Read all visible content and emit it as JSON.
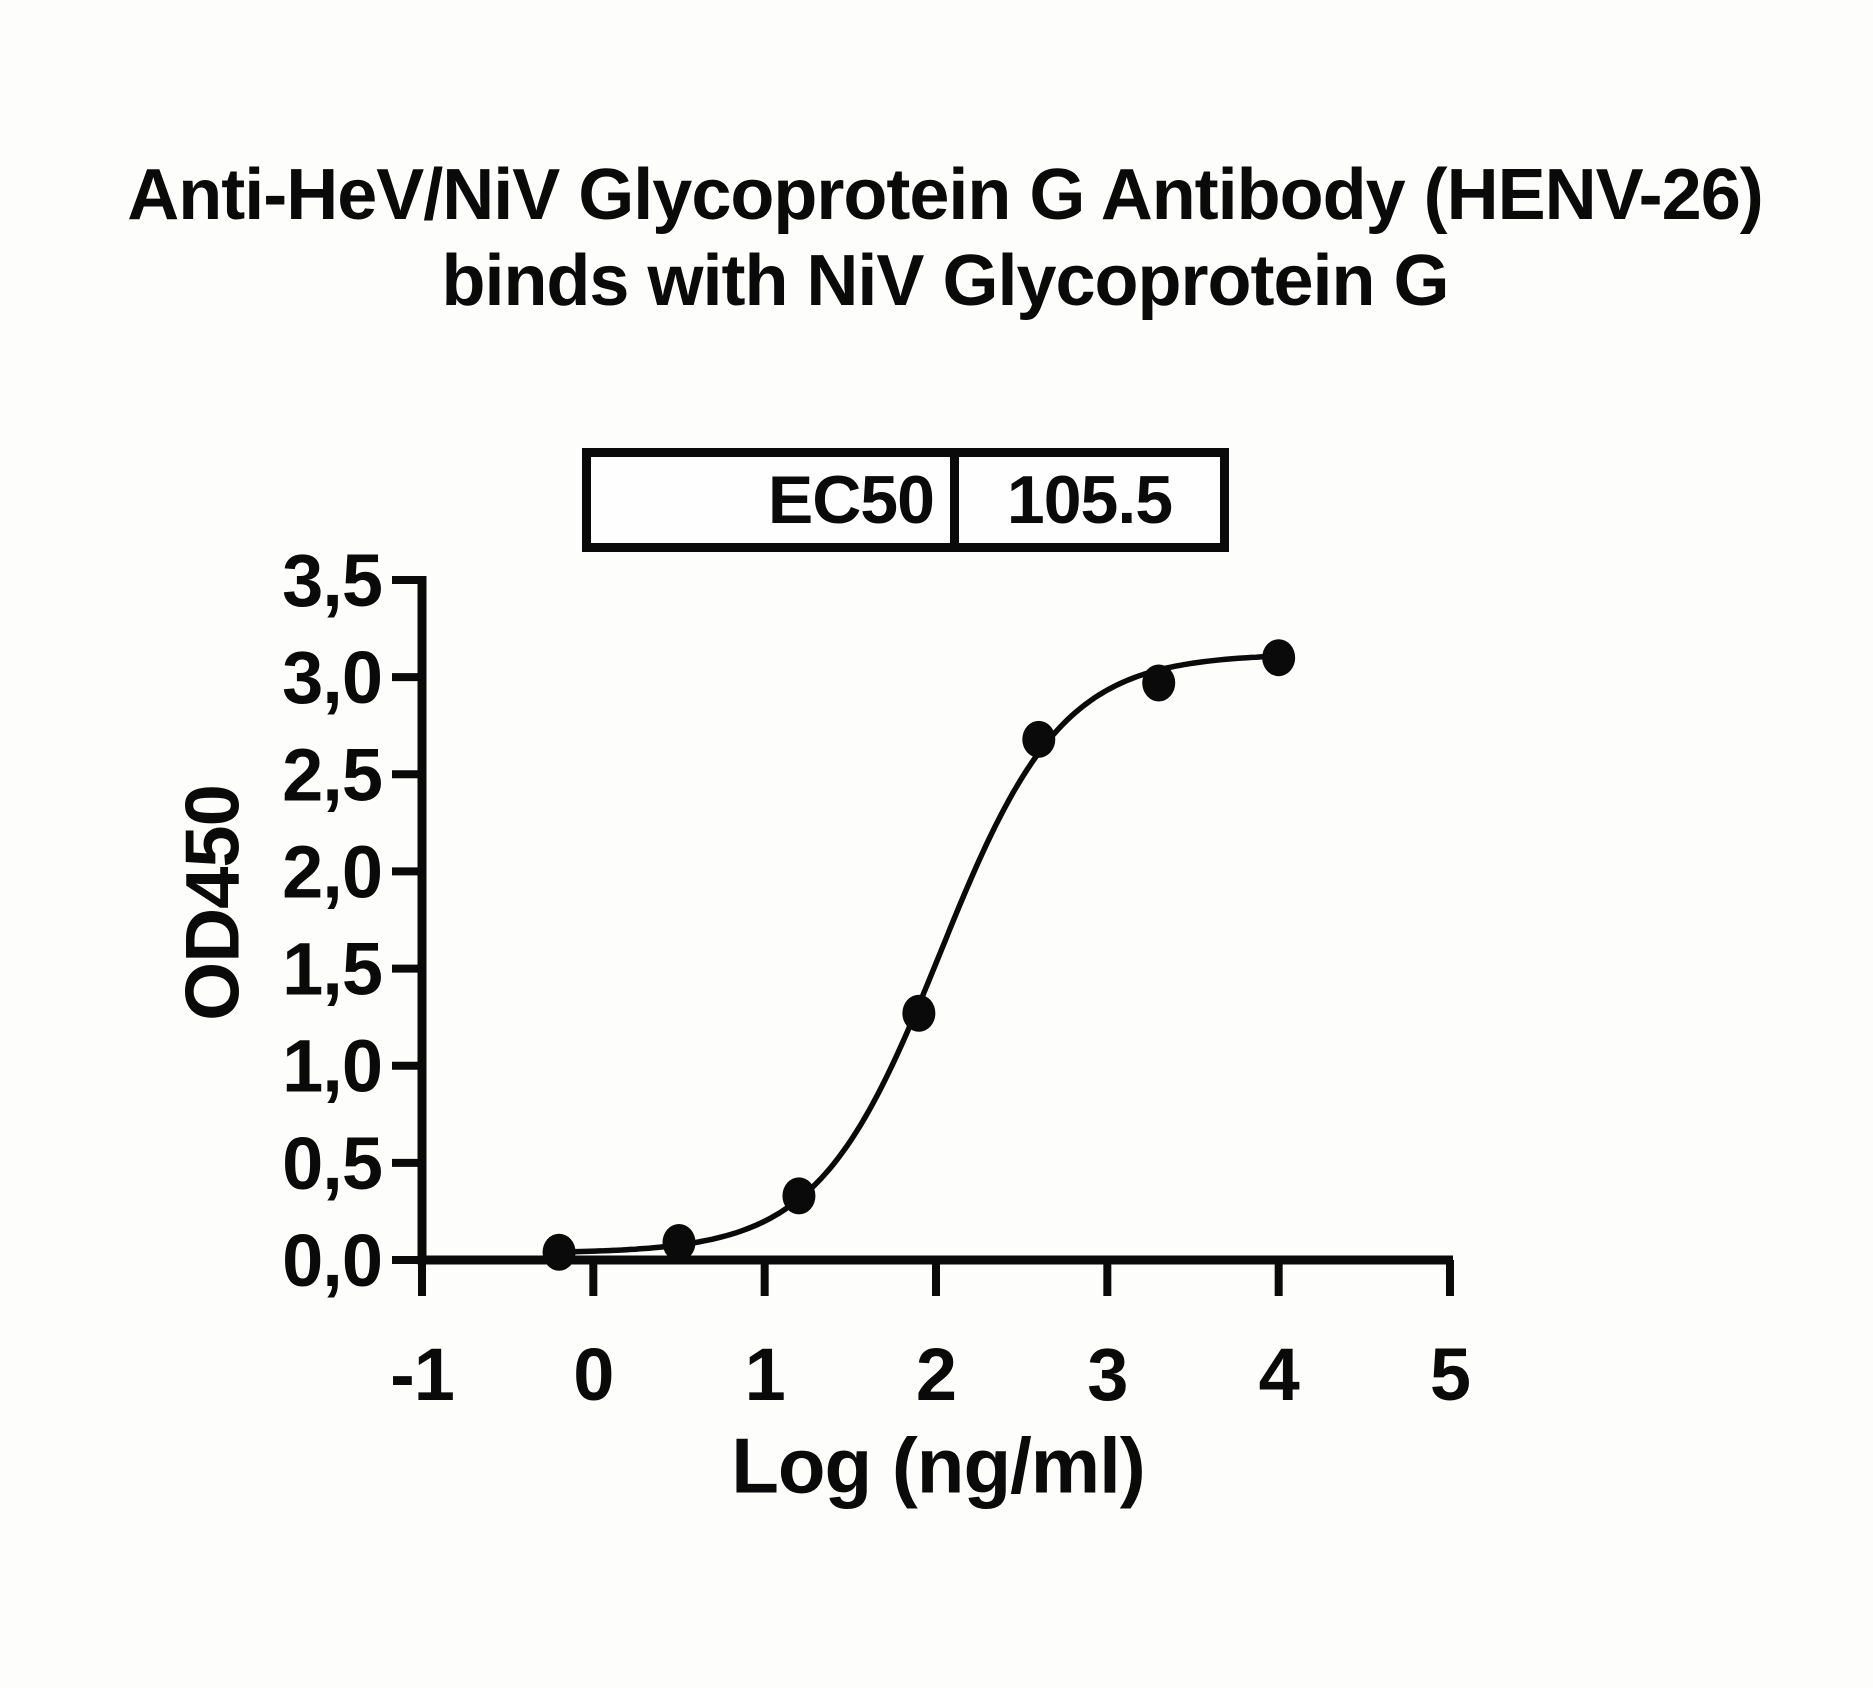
{
  "title": {
    "line1": "Anti-HeV/NiV Glycoprotein G Antibody (HENV-26)",
    "line2": "binds with NiV Glycoprotein G"
  },
  "ec50_table": {
    "label": "EC50",
    "value": "105.5"
  },
  "chart_data": {
    "type": "scatter",
    "title": "Anti-HeV/NiV Glycoprotein G Antibody (HENV-26) binds with NiV Glycoprotein G",
    "xlabel": "Log (ng/ml)",
    "ylabel": "OD450",
    "xlim": [
      -1,
      5
    ],
    "ylim": [
      0,
      3.5
    ],
    "x": [
      -0.2,
      0.5,
      1.2,
      1.9,
      2.6,
      3.3,
      4.0
    ],
    "y": [
      0.04,
      0.09,
      0.33,
      1.27,
      2.68,
      2.97,
      3.1
    ],
    "x_ticks": {
      "values": [
        -1,
        0,
        1,
        2,
        3,
        4,
        5
      ],
      "labels": [
        "-1",
        "0",
        "1",
        "2",
        "3",
        "4",
        "5"
      ]
    },
    "y_ticks": {
      "values": [
        0,
        0.5,
        1.0,
        1.5,
        2.0,
        2.5,
        3.0,
        3.5
      ],
      "labels": [
        "0,0",
        "0,5",
        "1,0",
        "1,5",
        "2,0",
        "2,5",
        "3,0",
        "3,5"
      ]
    },
    "fit_curve": {
      "model": "4PL sigmoid",
      "bottom": 0.035,
      "top": 3.12,
      "log_ec50": 2.023,
      "hill": 1.22,
      "x_start": -0.2,
      "x_end": 4.0
    },
    "ec50": 105.5,
    "grid": false,
    "legend": "none",
    "marker_color": "#0a0a0a",
    "line_color": "#0a0a0a",
    "background_color": "#fdfdfb"
  }
}
